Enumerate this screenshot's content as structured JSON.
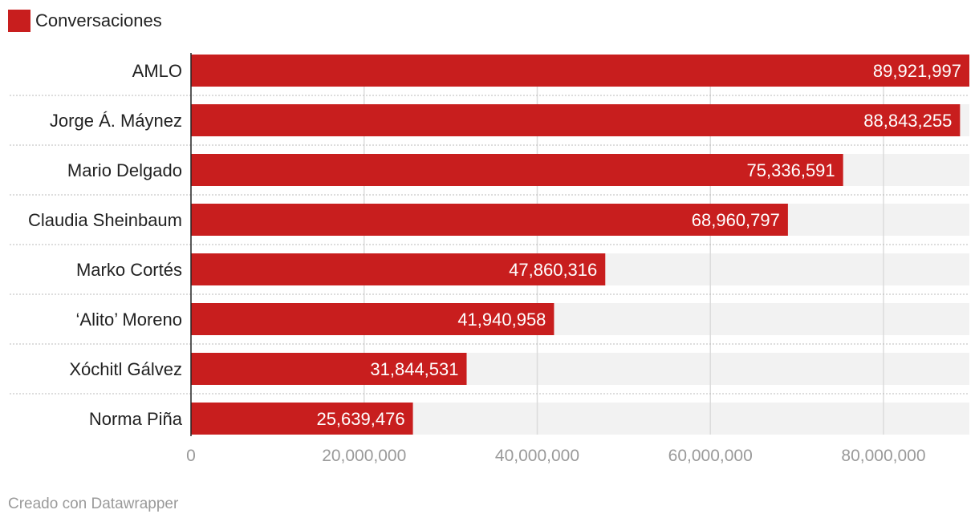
{
  "legend": {
    "label": "Conversaciones",
    "color": "#c81e1e"
  },
  "credit": "Creado con Datawrapper",
  "colors": {
    "bar": "#c81e1e",
    "track": "#f2f2f2",
    "grid": "#dcdcdc",
    "axis_text": "#9a9a9a",
    "label_text": "#222222",
    "value_text": "#ffffff"
  },
  "chart_data": {
    "type": "bar",
    "orientation": "horizontal",
    "categories": [
      "AMLO",
      "Jorge Á. Máynez",
      "Mario Delgado",
      "Claudia Sheinbaum",
      "Marko Cortés",
      "‘Alito’ Moreno",
      "Xóchitl Gálvez",
      "Norma Piña"
    ],
    "series": [
      {
        "name": "Conversaciones",
        "values": [
          89921997,
          88843255,
          75336591,
          68960797,
          47860316,
          41940958,
          31844531,
          25639476
        ]
      }
    ],
    "value_labels": [
      "89,921,997",
      "88,843,255",
      "75,336,591",
      "68,960,797",
      "47,860,316",
      "41,940,958",
      "31,844,531",
      "25,639,476"
    ],
    "xlim": [
      0,
      89921997
    ],
    "xticks": [
      0,
      20000000,
      40000000,
      60000000,
      80000000
    ],
    "xtick_labels": [
      "0",
      "20,000,000",
      "40,000,000",
      "60,000,000",
      "80,000,000"
    ],
    "grid": true,
    "legend_position": "top-left"
  }
}
